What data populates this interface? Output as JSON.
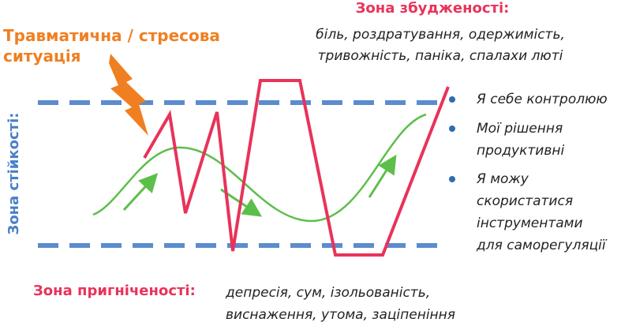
{
  "trigger": {
    "lines": [
      "Травматична / стресова",
      "ситуація"
    ]
  },
  "arousal_zone": {
    "title": "Зона збудженості:",
    "lines": [
      "біль, роздратування, одержимість,",
      "тривожність, паніка, спалахи люті"
    ]
  },
  "tolerance_zone": {
    "title": "Зона стійкості:",
    "bullets": [
      [
        "Я себе контролюю"
      ],
      [
        "Мої рішення",
        "продуктивні"
      ],
      [
        "Я можу",
        "скористатися",
        "інструментами",
        "для саморегуляції"
      ]
    ]
  },
  "depression_zone": {
    "title": "Зона пригніченості:",
    "lines": [
      "депресія, сум, ізольованість,",
      "виснаження, утома, заціпеніння"
    ]
  }
}
